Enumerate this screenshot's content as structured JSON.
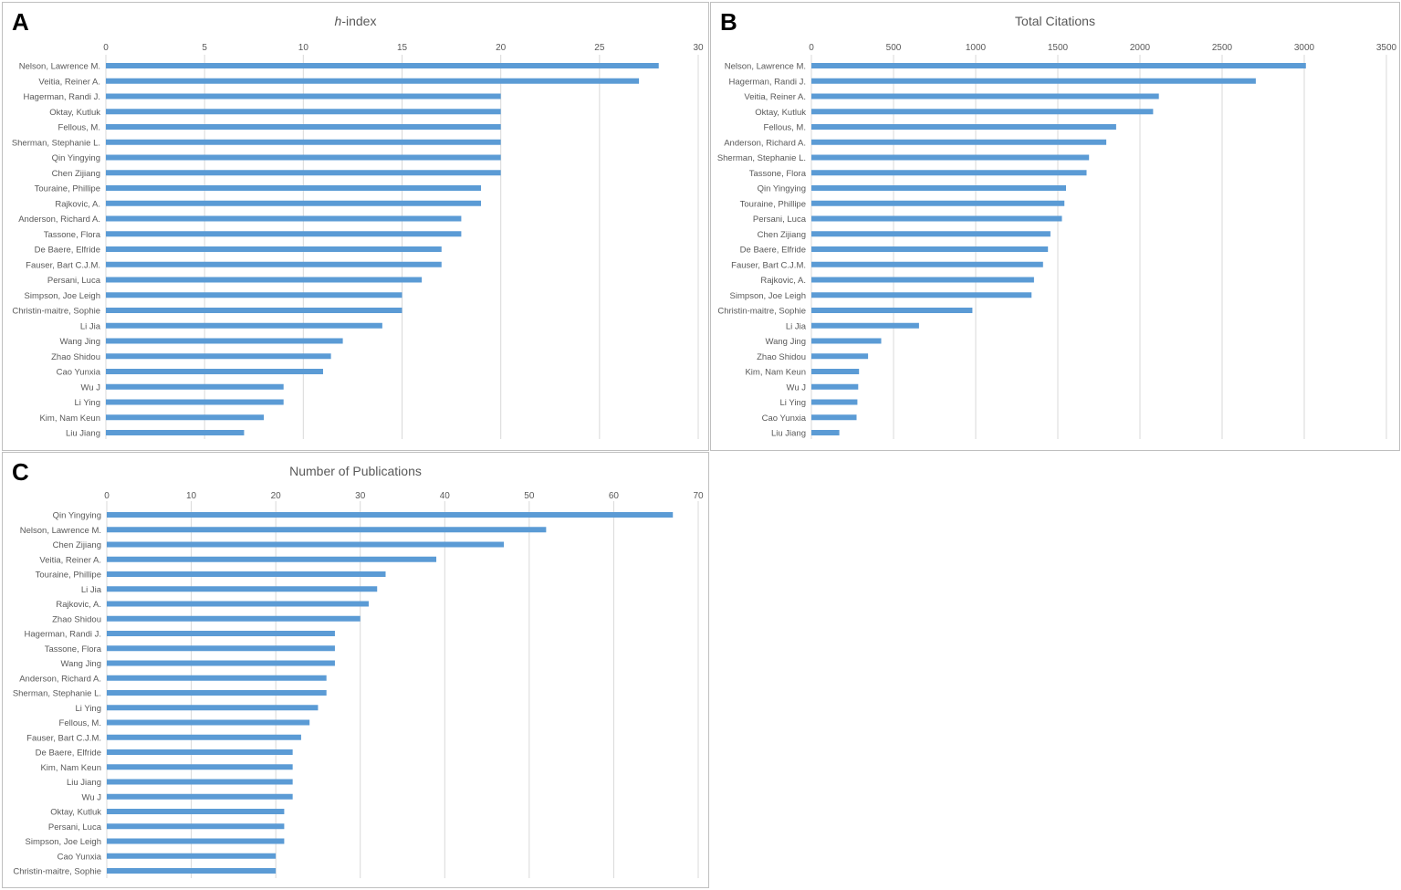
{
  "panels": [
    {
      "letter": "A",
      "title_italic": "h",
      "title_rest": "-index"
    },
    {
      "letter": "B",
      "title": "Total Citations"
    },
    {
      "letter": "C",
      "title": "Number of Publications"
    }
  ],
  "colors": {
    "bar": "#5b9bd5",
    "grid": "#d9d9d9",
    "text": "#595959"
  },
  "chart_data": [
    {
      "type": "bar",
      "orientation": "horizontal",
      "title": "h-index",
      "xlabel": "",
      "ylabel": "",
      "xlim": [
        0,
        30
      ],
      "xticks": [
        0,
        5,
        10,
        15,
        20,
        25,
        30
      ],
      "axis_position": "top",
      "grid": true,
      "categories": [
        "Nelson, Lawrence M.",
        "Veitia, Reiner A.",
        "Hagerman, Randi J.",
        "Oktay, Kutluk",
        "Fellous, M.",
        "Sherman, Stephanie L.",
        "Qin Yingying",
        "Chen Zijiang",
        "Touraine, Phillipe",
        "Rajkovic, A.",
        "Anderson, Richard A.",
        "Tassone, Flora",
        "De Baere, Elfride",
        "Fauser, Bart C.J.M.",
        "Persani, Luca",
        "Simpson, Joe Leigh",
        "Christin-maitre, Sophie",
        "Li Jia",
        "Wang Jing",
        "Zhao Shidou",
        "Cao Yunxia",
        "Wu J",
        "Li Ying",
        "Kim, Nam Keun",
        "Liu Jiang"
      ],
      "values": [
        28,
        27,
        20,
        20,
        20,
        20,
        20,
        20,
        19,
        19,
        18,
        18,
        17,
        17,
        16,
        15,
        15,
        14,
        12,
        11.4,
        11,
        9,
        9,
        8,
        7
      ]
    },
    {
      "type": "bar",
      "orientation": "horizontal",
      "title": "Total Citations",
      "xlabel": "",
      "ylabel": "",
      "xlim": [
        0,
        3500
      ],
      "xticks": [
        0,
        500,
        1000,
        1500,
        2000,
        2500,
        3000,
        3500
      ],
      "axis_position": "top",
      "grid": true,
      "categories": [
        "Nelson, Lawrence M.",
        "Hagerman, Randi J.",
        "Veitia, Reiner A.",
        "Oktay, Kutluk",
        "Fellous, M.",
        "Anderson, Richard A.",
        "Sherman, Stephanie L.",
        "Tassone, Flora",
        "Qin Yingying",
        "Touraine, Phillipe",
        "Persani, Luca",
        "Chen Zijiang",
        "De Baere, Elfride",
        "Fauser, Bart C.J.M.",
        "Rajkovic, A.",
        "Simpson, Joe Leigh",
        "Christin-maitre, Sophie",
        "Li Jia",
        "Wang Jing",
        "Zhao Shidou",
        "Kim, Nam Keun",
        "Wu J",
        "Li Ying",
        "Cao Yunxia",
        "Liu Jiang"
      ],
      "values": [
        3010,
        2705,
        2115,
        2080,
        1855,
        1795,
        1690,
        1675,
        1550,
        1540,
        1525,
        1455,
        1440,
        1410,
        1355,
        1340,
        980,
        655,
        425,
        345,
        290,
        285,
        280,
        275,
        170
      ]
    },
    {
      "type": "bar",
      "orientation": "horizontal",
      "title": "Number of Publications",
      "xlabel": "",
      "ylabel": "",
      "xlim": [
        0,
        70
      ],
      "xticks": [
        0,
        10,
        20,
        30,
        40,
        50,
        60,
        70
      ],
      "axis_position": "top",
      "grid": true,
      "categories": [
        "Qin Yingying",
        "Nelson, Lawrence M.",
        "Chen Zijiang",
        "Veitia, Reiner A.",
        "Touraine, Phillipe",
        "Li Jia",
        "Rajkovic, A.",
        "Zhao Shidou",
        "Hagerman, Randi J.",
        "Tassone, Flora",
        "Wang Jing",
        "Anderson, Richard A.",
        "Sherman, Stephanie L.",
        "Li Ying",
        "Fellous, M.",
        "Fauser, Bart C.J.M.",
        "De Baere, Elfride",
        "Kim, Nam Keun",
        "Liu Jiang",
        "Wu J",
        "Oktay, Kutluk",
        "Persani, Luca",
        "Simpson, Joe Leigh",
        "Cao Yunxia",
        "Christin-maitre, Sophie"
      ],
      "values": [
        67,
        52,
        47,
        39,
        33,
        32,
        31,
        30,
        27,
        27,
        27,
        26,
        26,
        25,
        24,
        23,
        22,
        22,
        22,
        22,
        21,
        21,
        21,
        20,
        20
      ]
    }
  ]
}
